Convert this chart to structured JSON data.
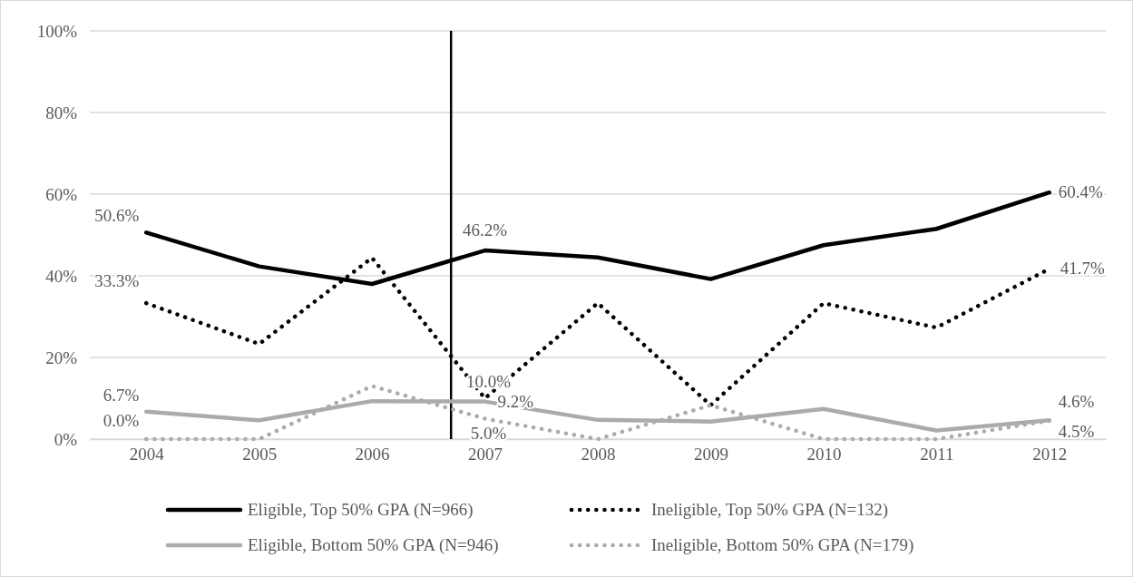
{
  "chart_data": {
    "type": "line",
    "x": [
      2004,
      2005,
      2006,
      2007,
      2008,
      2009,
      2010,
      2011,
      2012
    ],
    "xlim": [
      2003.5,
      2012.5
    ],
    "xticks": [
      2004,
      2005,
      2006,
      2007,
      2008,
      2009,
      2010,
      2011,
      2012
    ],
    "ylim": [
      0,
      100
    ],
    "yticks": [
      {
        "value": 0,
        "label": "0%"
      },
      {
        "value": 20,
        "label": "20%"
      },
      {
        "value": 40,
        "label": "40%"
      },
      {
        "value": 60,
        "label": "60%"
      },
      {
        "value": 80,
        "label": "80%"
      },
      {
        "value": 100,
        "label": "100%"
      }
    ],
    "grid": "y",
    "legend": "bottom",
    "marker": "none",
    "ref_lines": [
      {
        "axis": "x",
        "value": 2006.7,
        "color": "#000000"
      }
    ],
    "series": [
      {
        "name": "Eligible, Top 50% GPA (N=966)",
        "color": "#000000",
        "line_style": "solid",
        "values": [
          50.6,
          42.3,
          38.0,
          46.2,
          44.5,
          39.2,
          47.5,
          51.5,
          60.4
        ],
        "value_labels": [
          "50.6%",
          null,
          null,
          "46.2%",
          null,
          null,
          null,
          null,
          "60.4%"
        ]
      },
      {
        "name": "Ineligible, Top 50% GPA (N=132)",
        "color": "#000000",
        "line_style": "dotted",
        "values": [
          33.3,
          23.3,
          44.4,
          10.0,
          33.3,
          8.3,
          33.3,
          27.3,
          41.7
        ],
        "value_labels": [
          "33.3%",
          null,
          null,
          "10.0%",
          null,
          null,
          null,
          null,
          "41.7%"
        ]
      },
      {
        "name": "Eligible, Bottom 50% GPA (N=946)",
        "color": "#aeaaaa",
        "line_style": "solid",
        "values": [
          6.7,
          4.6,
          9.3,
          9.2,
          4.7,
          4.3,
          7.4,
          2.1,
          4.6
        ],
        "value_labels": [
          "6.7%",
          null,
          null,
          "9.2%",
          null,
          null,
          null,
          null,
          "4.6%"
        ]
      },
      {
        "name": "Ineligible, Bottom 50% GPA (N=179)",
        "color": "#aeaaaa",
        "line_style": "dotted",
        "values": [
          0.0,
          0.0,
          13.0,
          5.0,
          0.0,
          8.3,
          0.0,
          0.0,
          4.5
        ],
        "value_labels": [
          "0.0%",
          null,
          null,
          "5.0%",
          null,
          null,
          null,
          null,
          "4.5%"
        ]
      }
    ]
  }
}
